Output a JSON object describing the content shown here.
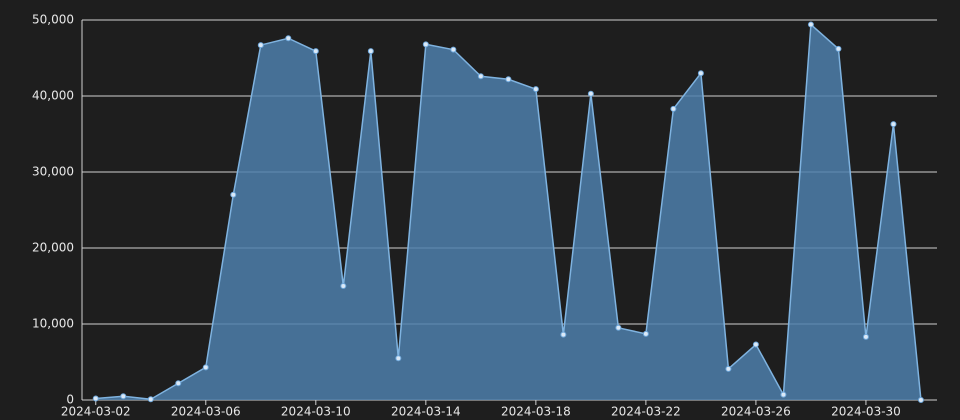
{
  "chart_data": {
    "type": "area",
    "x": [
      "2024-03-02",
      "2024-03-03",
      "2024-03-04",
      "2024-03-05",
      "2024-03-06",
      "2024-03-07",
      "2024-03-08",
      "2024-03-09",
      "2024-03-10",
      "2024-03-11",
      "2024-03-12",
      "2024-03-13",
      "2024-03-14",
      "2024-03-15",
      "2024-03-16",
      "2024-03-17",
      "2024-03-18",
      "2024-03-19",
      "2024-03-20",
      "2024-03-21",
      "2024-03-22",
      "2024-03-23",
      "2024-03-24",
      "2024-03-25",
      "2024-03-26",
      "2024-03-27",
      "2024-03-28",
      "2024-03-29",
      "2024-03-30",
      "2024-03-31",
      "2024-04-01"
    ],
    "values": [
      200,
      500,
      100,
      2200,
      4300,
      27000,
      46700,
      47600,
      45900,
      15000,
      45900,
      5500,
      46800,
      46100,
      42600,
      42200,
      40900,
      8600,
      40300,
      9500,
      8700,
      38300,
      43000,
      4100,
      7300,
      700,
      49400,
      46200,
      8300,
      36300,
      0
    ],
    "color": "#4e7fab",
    "xlim": [
      "2024-03-01T12:00",
      "2024-04-01T14:00"
    ],
    "xticks": [
      "2024-03-02",
      "2024-03-06",
      "2024-03-10",
      "2024-03-14",
      "2024-03-18",
      "2024-03-22",
      "2024-03-26",
      "2024-03-30"
    ],
    "ylim": [
      0,
      50000
    ],
    "yticks": [
      0,
      {
        "value": 10000,
        "label": "10,000"
      },
      {
        "value": 20000,
        "label": "20,000"
      },
      {
        "value": 30000,
        "label": "30,000"
      },
      {
        "value": 40000,
        "label": "40,000"
      },
      {
        "value": 50000,
        "label": "50,000"
      }
    ],
    "grid": true
  }
}
